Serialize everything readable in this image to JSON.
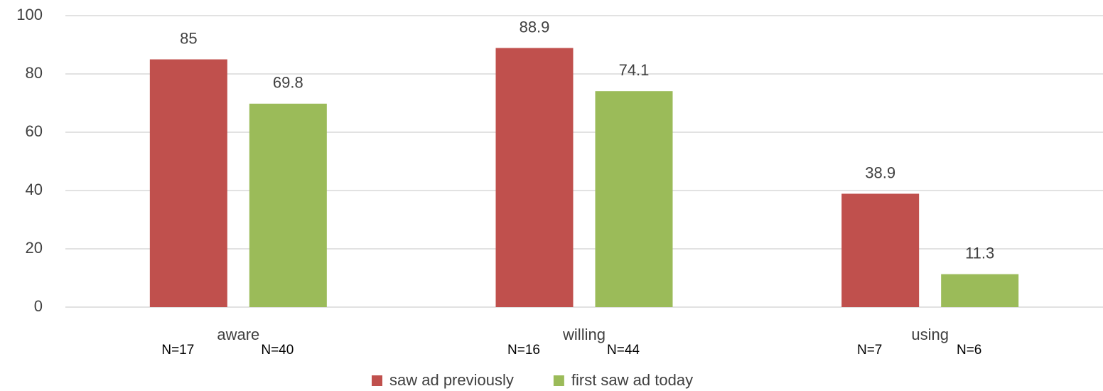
{
  "chart_data": {
    "type": "bar",
    "categories": [
      "aware",
      "willing",
      "using"
    ],
    "series": [
      {
        "name": "saw ad previously",
        "color": "#c0504d",
        "values": [
          85,
          88.9,
          38.9
        ],
        "sample_labels": [
          "N=17",
          "N=16",
          "N=7"
        ]
      },
      {
        "name": "first saw ad today",
        "color": "#9bbb59",
        "values": [
          69.8,
          74.1,
          11.3
        ],
        "sample_labels": [
          "N=40",
          "N=44",
          "N=6"
        ]
      }
    ],
    "ylim": [
      0,
      100
    ],
    "yticks": [
      0,
      20,
      40,
      60,
      80,
      100
    ],
    "grid": true,
    "legend": "bottom"
  }
}
